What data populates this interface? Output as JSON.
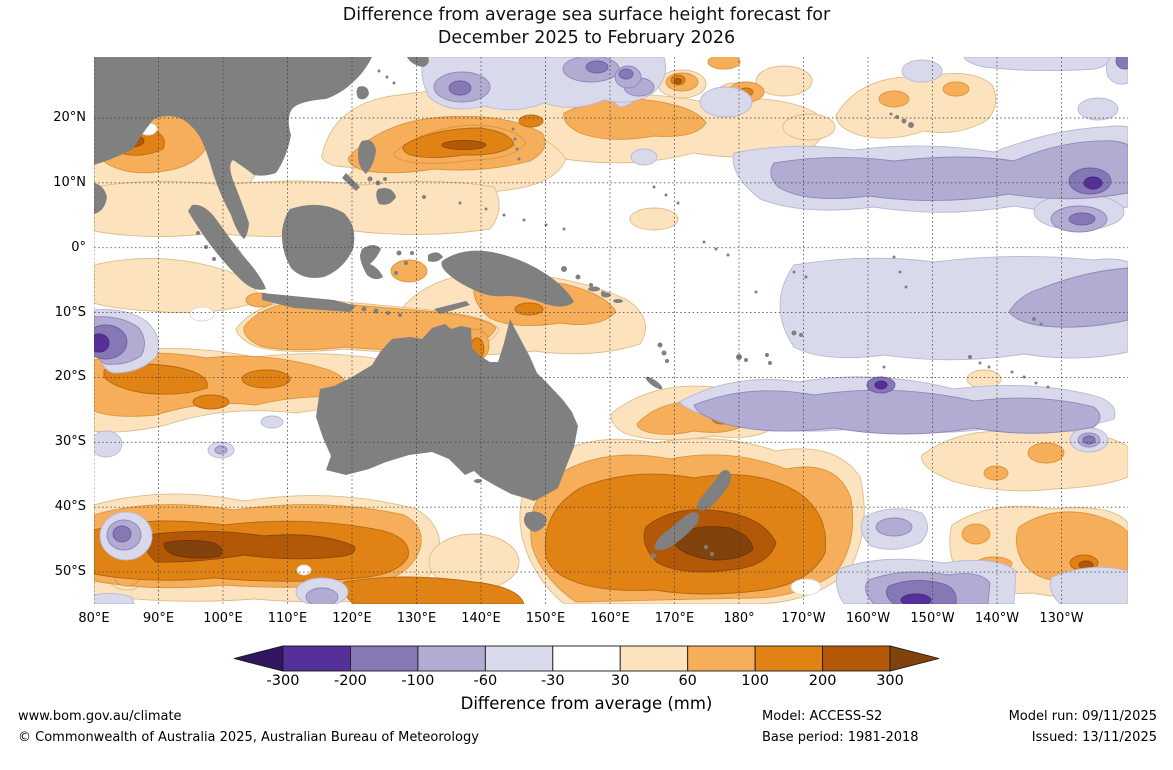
{
  "title": {
    "line1": "Difference from average sea surface height forecast for",
    "line2": "December 2025 to February 2026"
  },
  "map": {
    "land_color": "#808080",
    "lat_ticks": [
      "20°N",
      "10°N",
      "0°",
      "10°S",
      "20°S",
      "30°S",
      "40°S",
      "50°S"
    ],
    "lon_ticks": [
      "80°E",
      "90°E",
      "100°E",
      "110°E",
      "120°E",
      "130°E",
      "140°E",
      "150°E",
      "160°E",
      "170°E",
      "180°",
      "170°W",
      "160°W",
      "150°W",
      "140°W",
      "130°W"
    ]
  },
  "scale": {
    "caption": "Difference from average (mm)",
    "tick_labels": [
      "-300",
      "-200",
      "-100",
      "-60",
      "-30",
      "30",
      "60",
      "100",
      "200",
      "300"
    ],
    "colors": [
      "#321560",
      "#553098",
      "#8677b5",
      "#b2abd2",
      "#d8daeb",
      "#ffffff",
      "#fde3bd",
      "#f7ae5b",
      "#e08214",
      "#b35806",
      "#82420c"
    ]
  },
  "footer": {
    "website": "www.bom.gov.au/climate",
    "copyright": "© Commonwealth of Australia 2025, Australian Bureau of Meteorology",
    "model": "Model: ACCESS-S2",
    "base_period": "Base period: 1981-2018",
    "model_run": "Model run: 09/11/2025",
    "issued": "Issued: 13/11/2025"
  }
}
